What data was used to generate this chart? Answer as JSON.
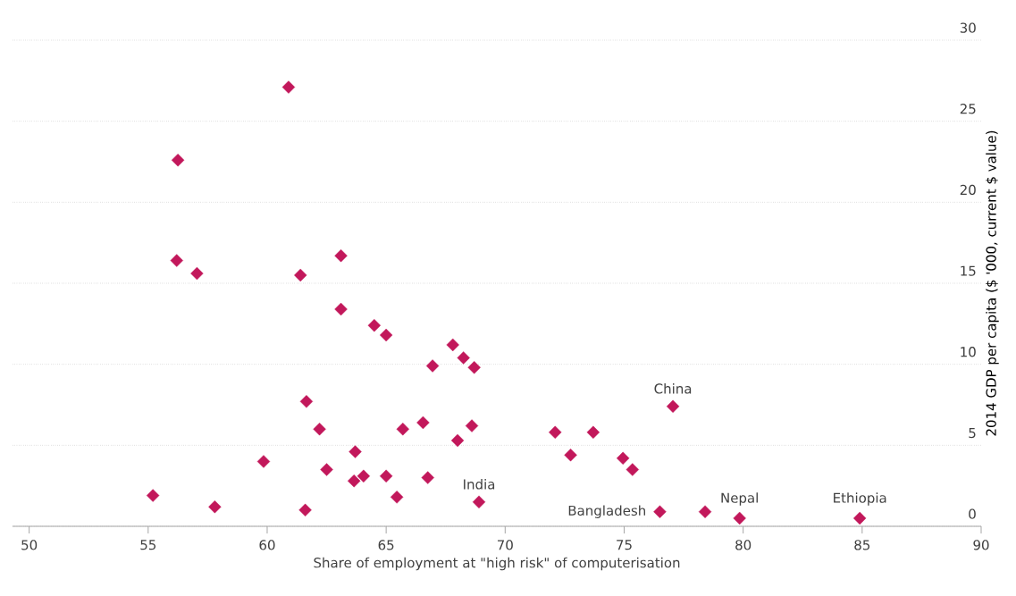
{
  "chart_data": {
    "type": "scatter",
    "xlabel": "Share of employment at \"high risk\" of computerisation",
    "ylabel": "2014 GDP per capita ($ '000, current $ value)",
    "x": [
      60.9,
      56.25,
      56.2,
      57.05,
      61.4,
      63.1,
      63.1,
      64.5,
      65.0,
      67.8,
      68.25,
      68.7,
      66.95,
      61.65,
      62.2,
      65.7,
      66.55,
      68.6,
      68.0,
      59.85,
      63.7,
      62.5,
      63.65,
      64.05,
      65.0,
      66.75,
      55.2,
      57.8,
      61.6,
      65.45,
      68.9,
      77.05,
      72.1,
      73.7,
      72.75,
      74.95,
      75.35,
      76.5,
      78.4,
      79.85,
      84.9
    ],
    "series": [
      {
        "color": "#c2185b",
        "values": [
          27.1,
          22.6,
          16.4,
          15.6,
          15.5,
          16.7,
          13.4,
          12.4,
          11.8,
          11.2,
          10.4,
          9.8,
          9.9,
          7.7,
          6.0,
          6.0,
          6.4,
          6.2,
          5.3,
          4.0,
          4.6,
          3.5,
          2.8,
          3.1,
          3.1,
          3.0,
          1.9,
          1.2,
          1.0,
          1.8,
          1.5,
          7.4,
          5.8,
          5.8,
          4.4,
          4.2,
          3.5,
          0.9,
          0.9,
          0.5,
          0.5
        ]
      }
    ],
    "marker": "diamond",
    "xlim": [
      49.3,
      90
    ],
    "xticks": [
      50,
      55,
      60,
      65,
      70,
      75,
      80,
      85,
      90
    ],
    "ylim": [
      0,
      30
    ],
    "yticks": [
      0,
      5,
      10,
      15,
      20,
      25,
      30
    ],
    "grid": "y",
    "annotations": [
      {
        "text": "China",
        "x": 77.05,
        "y": 7.4
      },
      {
        "text": "India",
        "x": 68.9,
        "y": 1.5
      },
      {
        "text": "Bangladesh",
        "x": 76.5,
        "y": 0.9
      },
      {
        "text": "Nepal",
        "x": 79.85,
        "y": 0.5
      },
      {
        "text": "Ethiopia",
        "x": 84.9,
        "y": 0.5
      }
    ]
  }
}
